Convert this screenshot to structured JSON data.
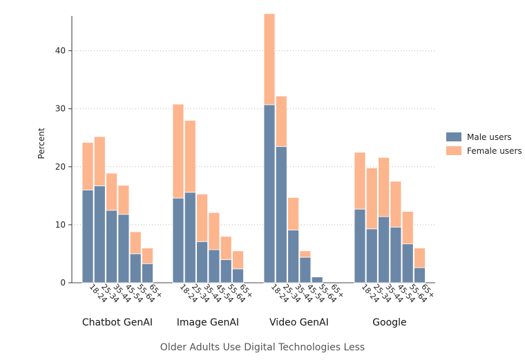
{
  "chart_data": {
    "type": "bar",
    "stacked": true,
    "ylabel": "Percent",
    "ylim": [
      0,
      46
    ],
    "yticks": [
      0,
      10,
      20,
      30,
      40
    ],
    "grid": true,
    "legend_placement": "right",
    "categories": [
      "18-24",
      "25-34",
      "35-44",
      "45-54",
      "55-64",
      "65+"
    ],
    "groups": [
      {
        "label": "Chatbot GenAI",
        "male": [
          16,
          16.7,
          12.5,
          11.8,
          5,
          3.3
        ],
        "female": [
          8.2,
          8.5,
          6.4,
          5,
          3.8,
          2.7
        ]
      },
      {
        "label": "Image GenAI",
        "male": [
          14.6,
          15.6,
          7.1,
          5.7,
          4,
          2.4
        ],
        "female": [
          16.2,
          12.4,
          8.2,
          6.4,
          4,
          3.1
        ]
      },
      {
        "label": "Video GenAI",
        "male": [
          30.7,
          23.5,
          9.1,
          4.4,
          1,
          0
        ],
        "female": [
          15.7,
          8.7,
          5.6,
          1.1,
          0,
          0
        ]
      },
      {
        "label": "Google",
        "male": [
          12.7,
          9.3,
          11.4,
          9.6,
          6.7,
          2.6
        ],
        "female": [
          9.8,
          10.5,
          10.2,
          7.9,
          5.6,
          3.4
        ]
      }
    ],
    "series": [
      {
        "name": "Male users",
        "color": "#6b87a8"
      },
      {
        "name": "Female users",
        "color": "#fdb58e"
      }
    ],
    "caption": "Older Adults Use Digital Technologies Less"
  }
}
